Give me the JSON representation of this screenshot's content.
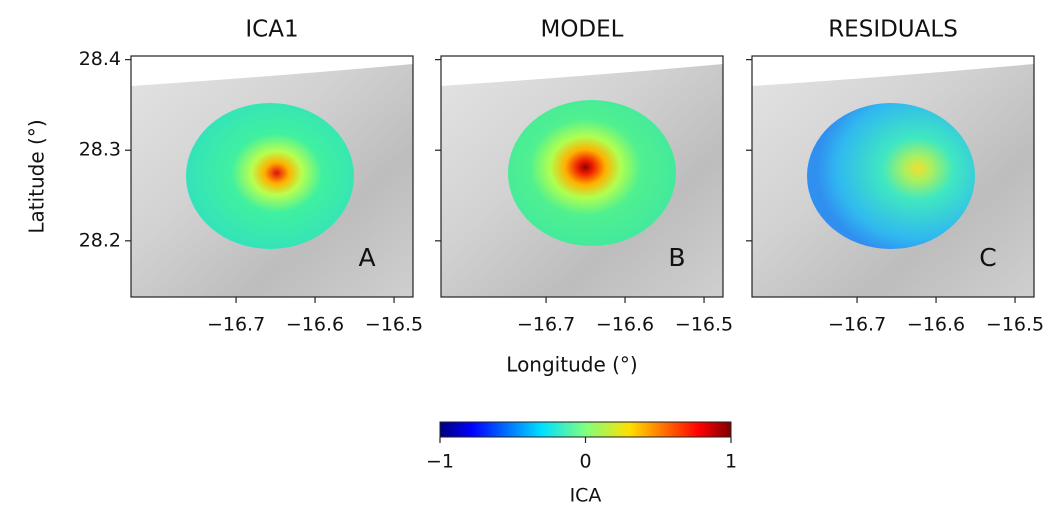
{
  "chart_data": [
    {
      "type": "map",
      "title": "ICA1",
      "label": "A",
      "xlim": [
        -16.833,
        -16.476
      ],
      "ylim": [
        28.138,
        28.404
      ],
      "xticks": [
        {
          "value": -16.7,
          "label": "−16.7"
        },
        {
          "value": -16.6,
          "label": "−16.6"
        },
        {
          "value": -16.5,
          "label": "−16.5"
        }
      ],
      "yticks": [
        28.2,
        28.3,
        28.4
      ],
      "ylabel": "Latitude (°)"
    },
    {
      "type": "map",
      "title": "MODEL",
      "label": "B",
      "xlim": [
        -16.833,
        -16.476
      ],
      "ylim": [
        28.138,
        28.404
      ],
      "xticks": [
        {
          "value": -16.7,
          "label": "−16.7"
        },
        {
          "value": -16.6,
          "label": "−16.6"
        },
        {
          "value": -16.5,
          "label": "−16.5"
        }
      ],
      "xlabel": "Longitude (°)"
    },
    {
      "type": "map",
      "title": "RESIDUALS",
      "label": "C",
      "xlim": [
        -16.833,
        -16.476
      ],
      "ylim": [
        28.138,
        28.404
      ],
      "xticks": [
        {
          "value": -16.7,
          "label": "−16.7"
        },
        {
          "value": -16.6,
          "label": "−16.6"
        },
        {
          "value": -16.5,
          "label": "−16.5"
        }
      ]
    }
  ],
  "colorbar": {
    "label": "ICA",
    "lim": [
      -1,
      1
    ],
    "ticks": [
      {
        "value": -1,
        "label": "−1"
      },
      0,
      1
    ]
  }
}
